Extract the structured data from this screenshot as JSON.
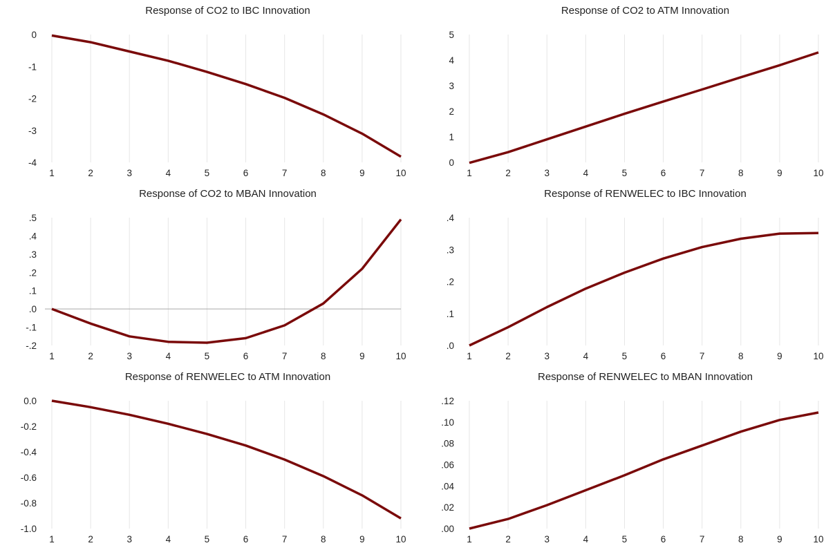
{
  "chart_data": [
    {
      "type": "line",
      "title": "Response of CO2 to IBC Innovation",
      "x": [
        1,
        2,
        3,
        4,
        5,
        6,
        7,
        8,
        9,
        10
      ],
      "xticks": [
        "1",
        "2",
        "3",
        "4",
        "5",
        "6",
        "7",
        "8",
        "9",
        "10"
      ],
      "ylim": [
        -4,
        0
      ],
      "yticks": [
        0,
        -1,
        -2,
        -3,
        -4
      ],
      "ytick_labels": [
        "0",
        "-1",
        "-2",
        "-3",
        "-4"
      ],
      "zero_line": false,
      "grid": "vertical",
      "series": [
        {
          "values": [
            -0.03,
            -0.24,
            -0.53,
            -0.82,
            -1.17,
            -1.55,
            -1.98,
            -2.5,
            -3.1,
            -3.82
          ]
        }
      ]
    },
    {
      "type": "line",
      "title": "Response of CO2 to ATM Innovation",
      "x": [
        1,
        2,
        3,
        4,
        5,
        6,
        7,
        8,
        9,
        10
      ],
      "xticks": [
        "1",
        "2",
        "3",
        "4",
        "5",
        "6",
        "7",
        "8",
        "9",
        "10"
      ],
      "ylim": [
        0,
        5
      ],
      "yticks": [
        0,
        1,
        2,
        3,
        4,
        5
      ],
      "ytick_labels": [
        "0",
        "1",
        "2",
        "3",
        "4",
        "5"
      ],
      "zero_line": false,
      "grid": "vertical",
      "series": [
        {
          "values": [
            -0.02,
            0.4,
            0.9,
            1.4,
            1.9,
            2.38,
            2.85,
            3.33,
            3.8,
            4.3
          ]
        }
      ]
    },
    {
      "type": "line",
      "title": "Response of CO2 to MBAN Innovation",
      "x": [
        1,
        2,
        3,
        4,
        5,
        6,
        7,
        8,
        9,
        10
      ],
      "xticks": [
        "1",
        "2",
        "3",
        "4",
        "5",
        "6",
        "7",
        "8",
        "9",
        "10"
      ],
      "ylim": [
        -0.2,
        0.5
      ],
      "yticks": [
        0.5,
        0.4,
        0.3,
        0.2,
        0.1,
        0.0,
        -0.1,
        -0.2
      ],
      "ytick_labels": [
        ".5",
        ".4",
        ".3",
        ".2",
        ".1",
        ".0",
        "-.1",
        "-.2"
      ],
      "zero_line": true,
      "grid": "vertical",
      "series": [
        {
          "values": [
            0.0,
            -0.08,
            -0.15,
            -0.18,
            -0.185,
            -0.16,
            -0.09,
            0.03,
            0.22,
            0.49
          ]
        }
      ]
    },
    {
      "type": "line",
      "title": "Response of RENWELEC to IBC Innovation",
      "x": [
        1,
        2,
        3,
        4,
        5,
        6,
        7,
        8,
        9,
        10
      ],
      "xticks": [
        "1",
        "2",
        "3",
        "4",
        "5",
        "6",
        "7",
        "8",
        "9",
        "10"
      ],
      "ylim": [
        0,
        0.4
      ],
      "yticks": [
        0.4,
        0.3,
        0.2,
        0.1,
        0.0
      ],
      "ytick_labels": [
        ".4",
        ".3",
        ".2",
        ".1",
        ".0"
      ],
      "zero_line": false,
      "grid": "vertical",
      "series": [
        {
          "values": [
            0.0,
            0.057,
            0.12,
            0.178,
            0.228,
            0.272,
            0.308,
            0.334,
            0.35,
            0.352
          ]
        }
      ]
    },
    {
      "type": "line",
      "title": "Response of RENWELEC to ATM Innovation",
      "x": [
        1,
        2,
        3,
        4,
        5,
        6,
        7,
        8,
        9,
        10
      ],
      "xticks": [
        "1",
        "2",
        "3",
        "4",
        "5",
        "6",
        "7",
        "8",
        "9",
        "10"
      ],
      "ylim": [
        -1.0,
        0.0
      ],
      "yticks": [
        0.0,
        -0.2,
        -0.4,
        -0.6,
        -0.8,
        -1.0
      ],
      "ytick_labels": [
        "0.0",
        "-0.2",
        "-0.4",
        "-0.6",
        "-0.8",
        "-1.0"
      ],
      "zero_line": false,
      "grid": "vertical",
      "series": [
        {
          "values": [
            0.0,
            -0.05,
            -0.11,
            -0.18,
            -0.26,
            -0.35,
            -0.46,
            -0.59,
            -0.74,
            -0.92
          ]
        }
      ]
    },
    {
      "type": "line",
      "title": "Response of RENWELEC to MBAN Innovation",
      "x": [
        1,
        2,
        3,
        4,
        5,
        6,
        7,
        8,
        9,
        10
      ],
      "xticks": [
        "1",
        "2",
        "3",
        "4",
        "5",
        "6",
        "7",
        "8",
        "9",
        "10"
      ],
      "ylim": [
        0,
        0.12
      ],
      "yticks": [
        0.12,
        0.1,
        0.08,
        0.06,
        0.04,
        0.02,
        0.0
      ],
      "ytick_labels": [
        ".12",
        ".10",
        ".08",
        ".06",
        ".04",
        ".02",
        ".00"
      ],
      "zero_line": false,
      "grid": "vertical",
      "series": [
        {
          "values": [
            0.0,
            0.009,
            0.022,
            0.036,
            0.05,
            0.065,
            0.078,
            0.091,
            0.102,
            0.109
          ]
        }
      ]
    }
  ],
  "colors": {
    "series": "#7a0a0a",
    "grid": "#e6e6e6",
    "zero_line": "#a8a8a8",
    "text": "#222222"
  }
}
